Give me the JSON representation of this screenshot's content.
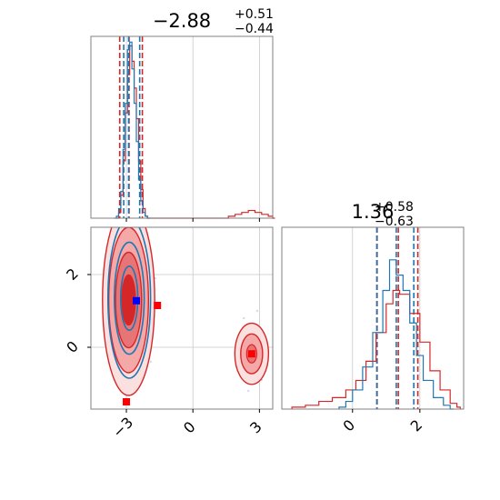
{
  "colors": {
    "red": "#d62728",
    "blue": "#1f77b4",
    "red_fill": "#f4a8a8",
    "red_mid": "#e87575",
    "grid": "#c8c8c8",
    "marker_blue": "#0000ff",
    "marker_red": "#ff0000"
  },
  "chart_data": [
    {
      "type": "histogram",
      "panel": "param-1-marginal",
      "title": {
        "main": "−2.88",
        "sup": "+0.51",
        "sub": "−0.44"
      },
      "xlim": [
        -4.6,
        3.6
      ],
      "x_ticks": [
        -3,
        0,
        3
      ],
      "quantiles": {
        "red": [
          -3.3,
          -2.88,
          -2.28
        ],
        "blue": [
          -3.12,
          -2.9,
          -2.4
        ]
      },
      "series": [
        {
          "color": "red",
          "bins": [
            [
              -3.45,
              0.0
            ],
            [
              -3.35,
              0.03
            ],
            [
              -3.25,
              0.12
            ],
            [
              -3.15,
              0.3
            ],
            [
              -3.05,
              0.55
            ],
            [
              -2.95,
              0.75
            ],
            [
              -2.85,
              0.9
            ],
            [
              -2.75,
              0.82
            ],
            [
              -2.65,
              0.68
            ],
            [
              -2.55,
              0.52
            ],
            [
              -2.45,
              0.3
            ],
            [
              -2.35,
              0.15
            ],
            [
              -2.25,
              0.05
            ],
            [
              -2.15,
              0.01
            ],
            [
              -2.05,
              0.0
            ],
            [
              1.4,
              0.0
            ],
            [
              1.6,
              0.01
            ],
            [
              1.9,
              0.02
            ],
            [
              2.2,
              0.03
            ],
            [
              2.5,
              0.04
            ],
            [
              2.8,
              0.03
            ],
            [
              3.1,
              0.02
            ],
            [
              3.4,
              0.01
            ],
            [
              3.6,
              0.0
            ]
          ]
        },
        {
          "color": "blue",
          "bins": [
            [
              -3.55,
              0.0
            ],
            [
              -3.45,
              0.01
            ],
            [
              -3.35,
              0.05
            ],
            [
              -3.25,
              0.14
            ],
            [
              -3.15,
              0.36
            ],
            [
              -3.05,
              0.6
            ],
            [
              -2.95,
              0.88
            ],
            [
              -2.85,
              0.92
            ],
            [
              -2.75,
              0.78
            ],
            [
              -2.65,
              0.6
            ],
            [
              -2.55,
              0.4
            ],
            [
              -2.45,
              0.2
            ],
            [
              -2.35,
              0.09
            ],
            [
              -2.25,
              0.03
            ],
            [
              -2.15,
              0.01
            ],
            [
              -2.05,
              0.0
            ]
          ]
        }
      ]
    },
    {
      "type": "histogram",
      "panel": "param-2-marginal",
      "title": {
        "main": "1.36",
        "sup": "+0.58",
        "sub": "−0.63"
      },
      "xlim": [
        -2.1,
        3.3
      ],
      "x_ticks": [
        0,
        2
      ],
      "quantiles": {
        "red": [
          0.73,
          1.36,
          1.94
        ],
        "blue": [
          0.72,
          1.3,
          1.82
        ]
      },
      "series": [
        {
          "color": "red",
          "bins": [
            [
              -1.8,
              0.01
            ],
            [
              -1.4,
              0.02
            ],
            [
              -1.0,
              0.04
            ],
            [
              -0.6,
              0.06
            ],
            [
              -0.2,
              0.1
            ],
            [
              0.1,
              0.15
            ],
            [
              0.4,
              0.25
            ],
            [
              0.7,
              0.4
            ],
            [
              1.0,
              0.55
            ],
            [
              1.2,
              0.62
            ],
            [
              1.4,
              0.6
            ],
            [
              1.7,
              0.5
            ],
            [
              2.0,
              0.35
            ],
            [
              2.3,
              0.2
            ],
            [
              2.6,
              0.1
            ],
            [
              2.9,
              0.03
            ],
            [
              3.1,
              0.01
            ]
          ]
        },
        {
          "color": "blue",
          "bins": [
            [
              -0.4,
              0.01
            ],
            [
              -0.2,
              0.04
            ],
            [
              0.0,
              0.1
            ],
            [
              0.3,
              0.22
            ],
            [
              0.6,
              0.4
            ],
            [
              0.9,
              0.62
            ],
            [
              1.1,
              0.78
            ],
            [
              1.3,
              0.7
            ],
            [
              1.5,
              0.62
            ],
            [
              1.7,
              0.45
            ],
            [
              1.9,
              0.28
            ],
            [
              2.1,
              0.15
            ],
            [
              2.4,
              0.06
            ],
            [
              2.7,
              0.02
            ],
            [
              2.9,
              0.0
            ]
          ]
        }
      ]
    },
    {
      "type": "contour",
      "panel": "joint-1-2",
      "xlim": [
        -4.6,
        3.6
      ],
      "ylim": [
        -1.7,
        3.3
      ],
      "x_ticks": [
        -3,
        0,
        3
      ],
      "y_ticks": [
        0,
        2
      ],
      "x_tick_labels": [
        "−3",
        "0",
        "3"
      ],
      "y_tick_labels": [
        "0",
        "2"
      ],
      "red_main_mode": {
        "cx": -2.9,
        "cy": 1.3,
        "sx": 0.56,
        "sy": 1.25
      },
      "red_secondary_mode": {
        "cx": 2.65,
        "cy": -0.18,
        "sx": 0.38,
        "sy": 0.42
      },
      "blue_mode": {
        "cx": -2.87,
        "cy": 1.35,
        "sx": 0.48,
        "sy": 1.1
      },
      "markers": [
        {
          "color": "marker_blue",
          "x": -2.55,
          "y": 1.28
        },
        {
          "color": "marker_red",
          "x": -1.6,
          "y": 1.15
        },
        {
          "color": "marker_red",
          "x": -3.0,
          "y": -1.5
        },
        {
          "color": "marker_red",
          "x": 2.65,
          "y": -0.18
        }
      ]
    }
  ]
}
